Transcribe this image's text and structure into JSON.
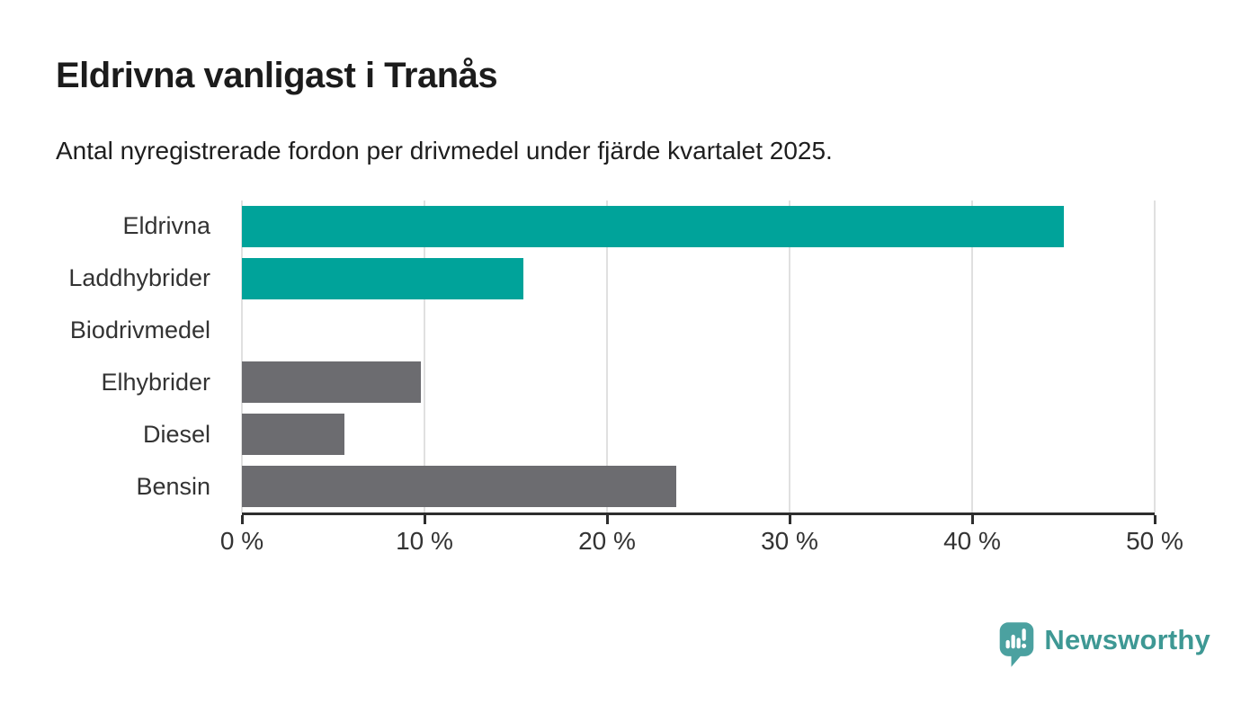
{
  "chart_data": {
    "type": "bar",
    "orientation": "horizontal",
    "title": "Eldrivna vanligast i Tranås",
    "subtitle": "Antal nyregistrerade fordon per drivmedel under fjärde kvartalet 2025.",
    "categories": [
      "Eldrivna",
      "Laddhybrider",
      "Biodrivmedel",
      "Elhybrider",
      "Diesel",
      "Bensin"
    ],
    "values": [
      45.0,
      15.4,
      0,
      9.8,
      5.6,
      23.8
    ],
    "unit": "%",
    "xlim": [
      0,
      50
    ],
    "x_ticks": [
      0,
      10,
      20,
      30,
      40,
      50
    ],
    "x_tick_labels": [
      "0 %",
      "10 %",
      "20 %",
      "30 %",
      "40 %",
      "50 %"
    ],
    "bar_colors": [
      "#00a39a",
      "#00a39a",
      "#6c6c70",
      "#6c6c70",
      "#6c6c70",
      "#6c6c70"
    ],
    "grid": "vertical",
    "legend": "none",
    "colors": {
      "accent_teal": "#00a39a",
      "neutral_gray": "#6c6c70",
      "gridline": "#e0e0e0",
      "axis": "#2e2e2e",
      "text": "#333333"
    }
  },
  "branding": {
    "logo_text": "Newsworthy",
    "logo_text_color": "#3e9894",
    "logo_icon_color": "#4ba1a0",
    "logo_icon": "chart-speech-bubble-icon"
  }
}
